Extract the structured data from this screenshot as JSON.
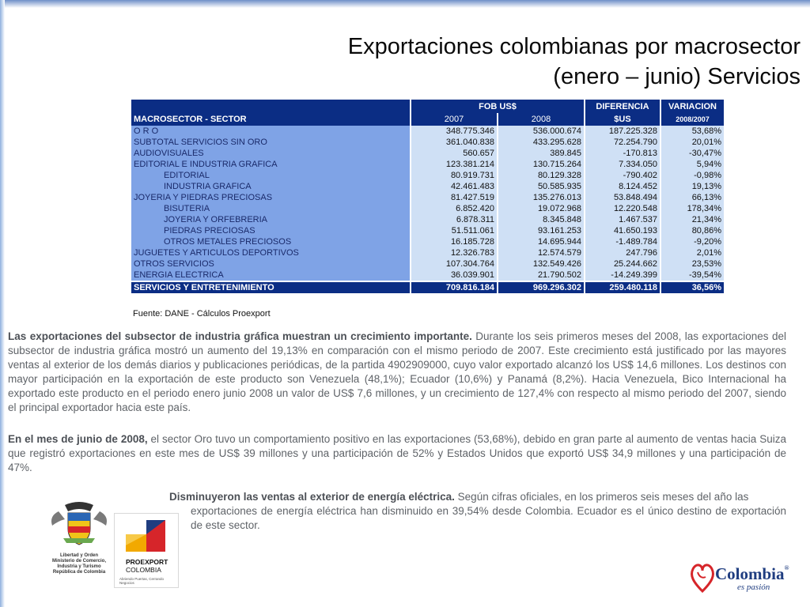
{
  "title": {
    "line1": "Exportaciones colombianas por macrosector",
    "line2": "(enero – junio) Servicios"
  },
  "table": {
    "header": {
      "fob": "FOB US$",
      "diferencia": "DIFERENCIA",
      "variacion": "VARIACION",
      "macrosector": "MACROSECTOR - SECTOR",
      "y2007": "2007",
      "y2008": "2008",
      "dif_unit": "$US",
      "var_period": "2008/2007"
    },
    "rows": [
      {
        "name": "O R O",
        "y2007": "348.775.346",
        "y2008": "536.000.674",
        "dif": "187.225.328",
        "var": "53,68%"
      },
      {
        "name": "SUBTOTAL SERVICIOS SIN ORO",
        "y2007": "361.040.838",
        "y2008": "433.295.628",
        "dif": "72.254.790",
        "var": "20,01%"
      },
      {
        "name": "AUDIOVISUALES",
        "y2007": "560.657",
        "y2008": "389.845",
        "dif": "-170.813",
        "var": "-30,47%"
      },
      {
        "name": "EDITORIAL E INDUSTRIA GRAFICA",
        "y2007": "123.381.214",
        "y2008": "130.715.264",
        "dif": "7.334.050",
        "var": "5,94%"
      },
      {
        "name": "EDITORIAL",
        "y2007": "80.919.731",
        "y2008": "80.129.328",
        "dif": "-790.402",
        "var": "-0,98%"
      },
      {
        "name": "INDUSTRIA GRAFICA",
        "y2007": "42.461.483",
        "y2008": "50.585.935",
        "dif": "8.124.452",
        "var": "19,13%"
      },
      {
        "name": "JOYERIA Y PIEDRAS PRECIOSAS",
        "y2007": "81.427.519",
        "y2008": "135.276.013",
        "dif": "53.848.494",
        "var": "66,13%"
      },
      {
        "name": "BISUTERIA",
        "y2007": "6.852.420",
        "y2008": "19.072.968",
        "dif": "12.220.548",
        "var": "178,34%"
      },
      {
        "name": "JOYERIA Y ORFEBRERIA",
        "y2007": "6.878.311",
        "y2008": "8.345.848",
        "dif": "1.467.537",
        "var": "21,34%"
      },
      {
        "name": "PIEDRAS PRECIOSAS",
        "y2007": "51.511.061",
        "y2008": "93.161.253",
        "dif": "41.650.193",
        "var": "80,86%"
      },
      {
        "name": "OTROS METALES PRECIOSOS",
        "y2007": "16.185.728",
        "y2008": "14.695.944",
        "dif": "-1.489.784",
        "var": "-9,20%"
      },
      {
        "name": "JUGUETES Y ARTICULOS DEPORTIVOS",
        "y2007": "12.326.783",
        "y2008": "12.574.579",
        "dif": "247.796",
        "var": "2,01%"
      },
      {
        "name": "OTROS SERVICIOS",
        "y2007": "107.304.764",
        "y2008": "132.549.426",
        "dif": "25.244.662",
        "var": "23,53%"
      },
      {
        "name": "ENERGIA ELECTRICA",
        "y2007": "36.039.901",
        "y2008": "21.790.502",
        "dif": "-14.249.399",
        "var": "-39,54%"
      }
    ],
    "total": {
      "name": "SERVICIOS Y ENTRETENIMIENTO",
      "y2007": "709.816.184",
      "y2008": "969.296.302",
      "dif": "259.480.118",
      "var": "36,56%"
    }
  },
  "source": "Fuente: DANE - Cálculos Proexport",
  "paragraphs": {
    "p1_bold": "Las exportaciones del subsector de industria gráfica muestran un crecimiento importante.",
    "p1_text": " Durante los seis primeros meses del 2008, las exportaciones del subsector de industria gráfica mostró un aumento del 19,13% en comparación con el mismo periodo de 2007. Este crecimiento está justificado por las mayores ventas al exterior de los demás diarios y publicaciones periódicas, de la partida 4902909000, cuyo valor exportado alcanzó los US$  14,6 millones. Los destinos con mayor participación en la exportación de este producto son Venezuela (48,1%); Ecuador (10,6%) y Panamá (8,2%). Hacia Venezuela, Bico Internacional ha exportado este producto en el periodo enero junio 2008 un valor de US$  7,6 millones, y un crecimiento de 127,4% con respecto al mismo periodo del 2007, siendo el principal exportador hacia este país.",
    "p2_bold": "En el mes de junio de 2008,",
    "p2_text": " el sector Oro tuvo un comportamiento positivo en las exportaciones (53,68%), debido en gran parte al aumento de ventas hacia Suiza que registró exportaciones en este mes de US$ 39 millones y una participación de 52% y Estados Unidos que exportó US$ 34,9 millones y una participación de 47%.",
    "p3_bold": "Disminuyeron las ventas al exterior de energía eléctrica.",
    "p3_text_a": " Según cifras oficiales, en los primeros seis meses del año las",
    "p3_text_b": "exportaciones de energía eléctrica han disminuido en 39,54% desde Colombia. Ecuador es el único destino de exportación de este sector."
  },
  "logos": {
    "govt_caption": [
      "Libertad y Orden",
      "Ministerio de Comercio,",
      "Industria y Turismo",
      "República de Colombia"
    ],
    "proexport_name": "PROEXPORT",
    "proexport_country": "COLOMBIA",
    "proexport_tagline": "Abriendo Puertas, Cerrando Negocios",
    "brand_word": "Colombia",
    "brand_reg": "®",
    "brand_tagline": "es pasión"
  },
  "colors": {
    "header_navy": "#0b2d84",
    "name_cell_blue": "#7fa3e6",
    "num_cell_blue": "#cfe0f5",
    "brand_blue": "#1f3d80",
    "brand_red": "#d6252a"
  }
}
